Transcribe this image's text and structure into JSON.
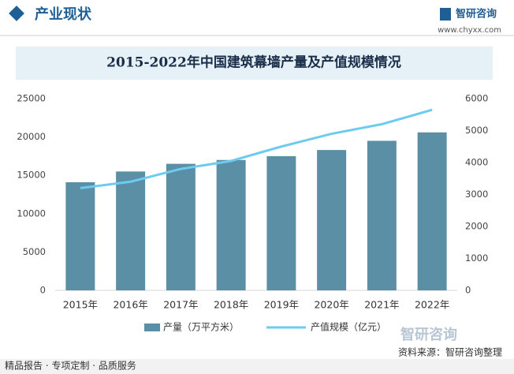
{
  "header": {
    "title": "产业现状",
    "logo": "智研咨询",
    "url": "www.chyxx.com"
  },
  "chart_data": {
    "type": "bar_line",
    "title": "2015-2022年中国建筑幕墙产量及产值规模情况",
    "categories": [
      "2015年",
      "2016年",
      "2017年",
      "2018年",
      "2019年",
      "2020年",
      "2021年",
      "2022年"
    ],
    "series": [
      {
        "name": "产量（万平方米）",
        "type": "bar",
        "color": "#5b8fa6",
        "values": [
          14100,
          15500,
          16500,
          17000,
          17500,
          18300,
          19500,
          20600
        ]
      },
      {
        "name": "产值规模（亿元）",
        "type": "line",
        "axis": "y2",
        "color": "#6ccbef",
        "values": [
          3200,
          3400,
          3800,
          4050,
          4500,
          4900,
          5200,
          5650
        ]
      }
    ],
    "ylim": [
      0,
      25000
    ],
    "yticks": [
      0,
      5000,
      10000,
      15000,
      20000,
      25000
    ],
    "y2lim": [
      0,
      6000
    ],
    "y2ticks": [
      0,
      1000,
      2000,
      3000,
      4000,
      5000,
      6000
    ],
    "legend": "bottom"
  },
  "footer": {
    "slogan": "精品报告 · 专项定制 · 品质服务",
    "source": "资料来源：智研咨询整理",
    "logo": "智研咨询"
  }
}
